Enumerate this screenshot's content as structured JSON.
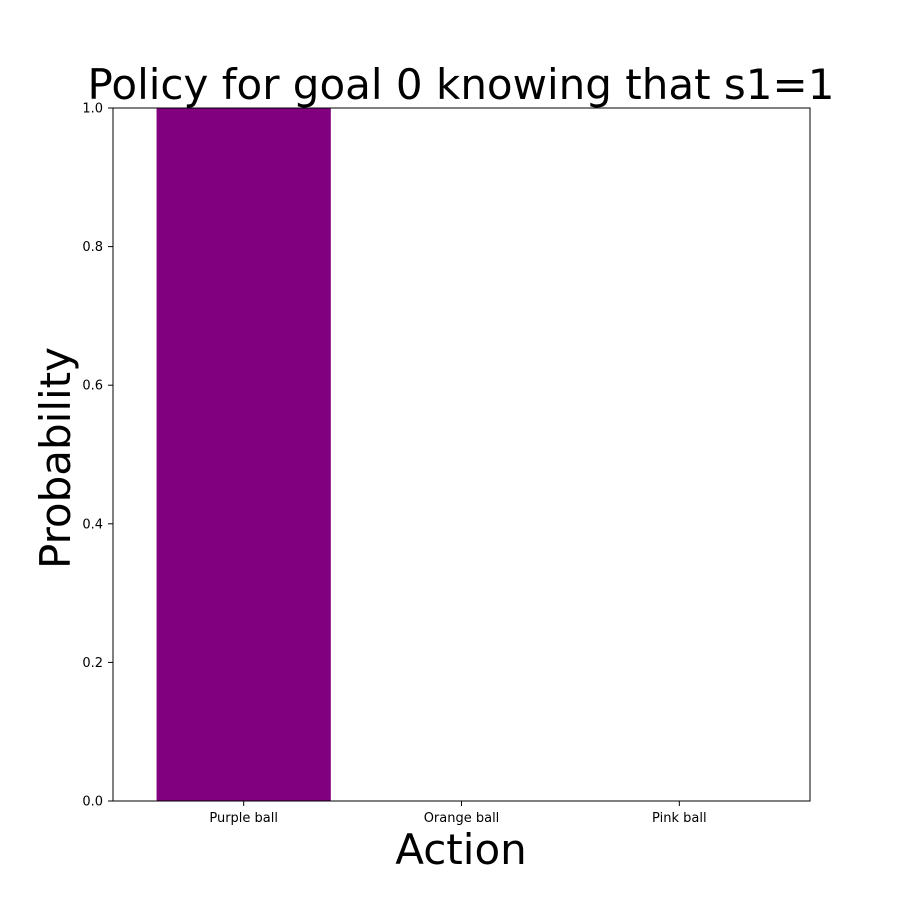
{
  "chart_data": {
    "type": "bar",
    "title": "Policy for goal 0 knowing that s1=1",
    "xlabel": "Action",
    "ylabel": "Probability",
    "categories": [
      "Purple ball",
      "Orange ball",
      "Pink ball"
    ],
    "values": [
      1.0,
      0.0,
      0.0
    ],
    "bar_colors": [
      "#800080",
      "#800080",
      "#800080"
    ],
    "ylim": [
      0,
      1.0
    ],
    "yticks": [
      "0.0",
      "0.2",
      "0.4",
      "0.6",
      "0.8",
      "1.0"
    ],
    "grid": false,
    "legend": null
  }
}
